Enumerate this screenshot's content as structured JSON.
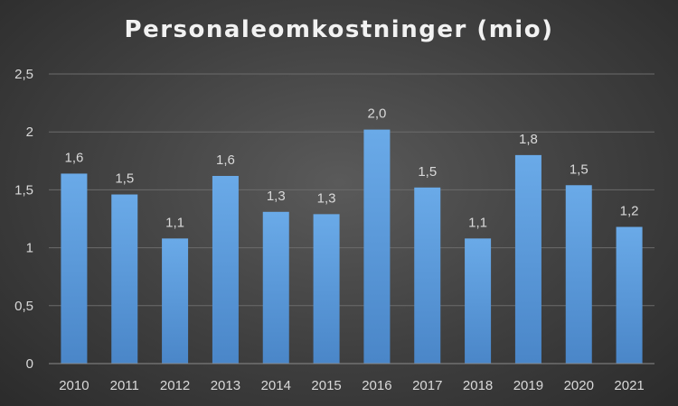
{
  "chart_data": {
    "type": "bar",
    "title": "Personaleomkostninger (mio)",
    "xlabel": "",
    "ylabel": "",
    "categories": [
      "2010",
      "2011",
      "2012",
      "2013",
      "2014",
      "2015",
      "2016",
      "2017",
      "2018",
      "2019",
      "2020",
      "2021"
    ],
    "values": [
      1.64,
      1.46,
      1.08,
      1.62,
      1.31,
      1.29,
      2.02,
      1.52,
      1.08,
      1.8,
      1.54,
      1.18
    ],
    "data_labels": [
      "1,6",
      "1,5",
      "1,1",
      "1,6",
      "1,3",
      "1,3",
      "2,0",
      "1,5",
      "1,1",
      "1,8",
      "1,5",
      "1,2"
    ],
    "ylim": [
      0,
      2.5
    ],
    "yticks": [
      0,
      0.5,
      1,
      1.5,
      2,
      2.5
    ],
    "ytick_labels": [
      "0",
      "0,5",
      "1",
      "1,5",
      "2",
      "2,5"
    ],
    "grid": true,
    "legend": "none",
    "colors": {
      "bar_top": "#6aaae8",
      "bar_bottom": "#4a86c8",
      "grid": "#6b6b6b",
      "text": "#d9d9d9"
    }
  }
}
